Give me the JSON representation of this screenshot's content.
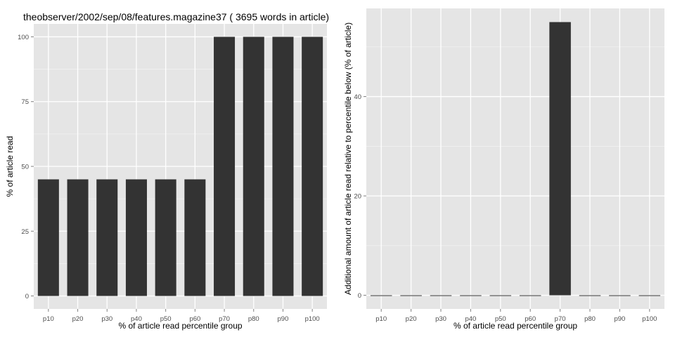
{
  "chart_data": [
    {
      "type": "bar",
      "title": "theobserver/2002/sep/08/features.magazine37 ( 3695 words in article)",
      "xlabel": "% of article read percentile group",
      "ylabel": "% of article read",
      "categories": [
        "p10",
        "p20",
        "p30",
        "p40",
        "p50",
        "p60",
        "p70",
        "p80",
        "p90",
        "p100"
      ],
      "values": [
        45,
        45,
        45,
        45,
        45,
        45,
        100,
        100,
        100,
        100
      ],
      "ylim": [
        -5,
        105
      ],
      "yticks": [
        0,
        25,
        50,
        75,
        100
      ],
      "grid": true,
      "colors": {
        "panel": "#e5e5e5",
        "grid": "#ffffff",
        "bar": "#333333"
      }
    },
    {
      "type": "bar",
      "title": "",
      "xlabel": "% of article read percentile group",
      "ylabel": "Additional amount of article read relative to percentile below (% of article)",
      "categories": [
        "p10",
        "p20",
        "p30",
        "p40",
        "p50",
        "p60",
        "p70",
        "p80",
        "p90",
        "p100"
      ],
      "values": [
        0,
        0,
        0,
        0,
        0,
        0,
        55,
        0,
        0,
        0
      ],
      "ylim": [
        -2.75,
        57.75
      ],
      "yticks": [
        0,
        20,
        40
      ],
      "grid": true,
      "colors": {
        "panel": "#e5e5e5",
        "grid": "#ffffff",
        "bar": "#333333"
      }
    }
  ]
}
